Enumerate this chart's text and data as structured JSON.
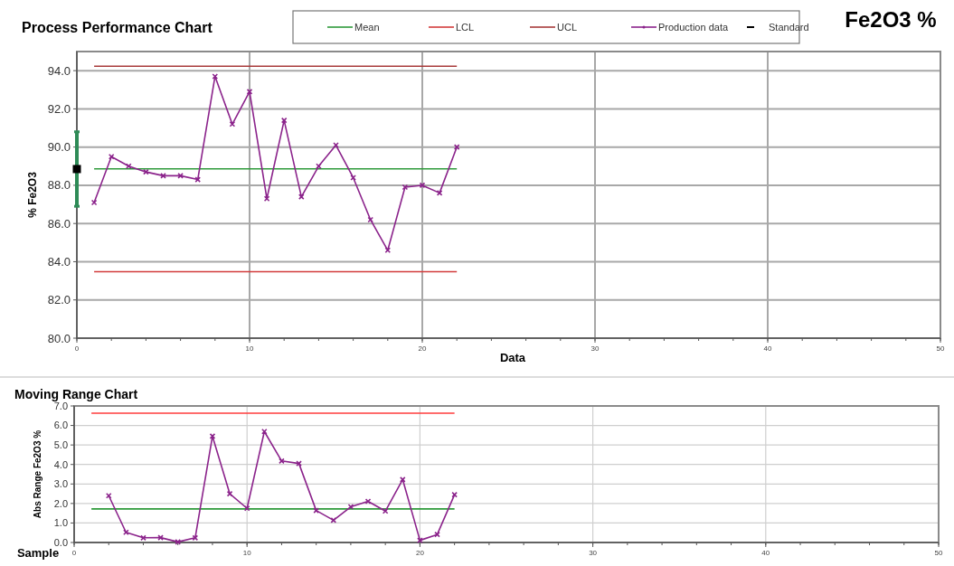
{
  "chart_data": [
    {
      "type": "line",
      "title": "Process Performance Chart",
      "xlabel": "Data",
      "ylabel": "% Fe2O3",
      "annotations": [
        "Fe2O3 %"
      ],
      "xlim": [
        0,
        50
      ],
      "xticks": [
        0,
        10,
        20,
        30,
        40,
        50
      ],
      "ylim": [
        80,
        95
      ],
      "yticks": [
        {
          "value": 80,
          "label": "80.0"
        },
        {
          "value": 82,
          "label": "82.0"
        },
        {
          "value": 84,
          "label": "84.0"
        },
        {
          "value": 86,
          "label": "86.0"
        },
        {
          "value": 88,
          "label": "88.0"
        },
        {
          "value": 90,
          "label": "90.0"
        },
        {
          "value": 92,
          "label": "92.0"
        },
        {
          "value": 94,
          "label": "94.0"
        }
      ],
      "grid": true,
      "legend": "top",
      "series": [
        {
          "name": "Mean",
          "color": "#2e9a3a",
          "x": [
            1,
            22
          ],
          "values": [
            88.86,
            88.86
          ]
        },
        {
          "name": "LCL",
          "color": "#d23c3c",
          "x": [
            1,
            22
          ],
          "values": [
            83.48,
            83.48
          ]
        },
        {
          "name": "UCL",
          "color": "#a83a3a",
          "x": [
            1,
            22
          ],
          "values": [
            94.23,
            94.23
          ]
        },
        {
          "name": "Production data",
          "color": "#8b238b",
          "marker": "cross",
          "x": [
            1,
            2,
            3,
            4,
            5,
            6,
            7,
            8,
            9,
            10,
            11,
            12,
            13,
            14,
            15,
            16,
            17,
            18,
            19,
            20,
            21,
            22
          ],
          "values": [
            87.1,
            89.5,
            89.0,
            88.7,
            88.5,
            88.5,
            88.3,
            93.7,
            91.2,
            92.9,
            87.3,
            91.4,
            87.4,
            89.0,
            90.1,
            88.4,
            86.2,
            84.6,
            87.9,
            88.0,
            87.6,
            90.0
          ]
        },
        {
          "name": "Standard",
          "type": "scatter",
          "color": "#000000",
          "marker": "square",
          "x": [
            0
          ],
          "values": [
            88.85
          ],
          "errors": [
            [
              86.9,
              90.8
            ]
          ]
        }
      ]
    },
    {
      "type": "line",
      "title": "Moving Range Chart",
      "xlabel": "Sample",
      "ylabel": "Abs Range Fe2O3 %",
      "xlim": [
        0,
        50
      ],
      "xticks": [
        0,
        10,
        20,
        30,
        40,
        50
      ],
      "ylim": [
        0,
        7
      ],
      "yticks": [
        {
          "value": 0,
          "label": "0.0"
        },
        {
          "value": 1,
          "label": "1.0"
        },
        {
          "value": 2,
          "label": "2.0"
        },
        {
          "value": 3,
          "label": "3.0"
        },
        {
          "value": 4,
          "label": "4.0"
        },
        {
          "value": 5,
          "label": "5.0"
        },
        {
          "value": 6,
          "label": "6.0"
        },
        {
          "value": 7,
          "label": "7.0"
        }
      ],
      "grid": true,
      "series": [
        {
          "color": "#ff3b3b",
          "x": [
            1,
            22
          ],
          "values": [
            6.63,
            6.63
          ]
        },
        {
          "color": "#2e9a3a",
          "x": [
            1,
            22
          ],
          "values": [
            1.72,
            1.72
          ]
        },
        {
          "color": "#8b238b",
          "marker": "cross",
          "x": [
            2,
            3,
            4,
            5,
            6,
            7,
            8,
            9,
            10,
            11,
            12,
            13,
            14,
            15,
            16,
            17,
            18,
            19,
            20,
            21,
            22
          ],
          "values": [
            2.4,
            0.52,
            0.24,
            0.25,
            0.03,
            0.24,
            5.45,
            2.5,
            1.75,
            5.69,
            4.18,
            4.05,
            1.64,
            1.14,
            1.83,
            2.11,
            1.61,
            3.23,
            0.11,
            0.41,
            2.45
          ]
        }
      ]
    }
  ]
}
